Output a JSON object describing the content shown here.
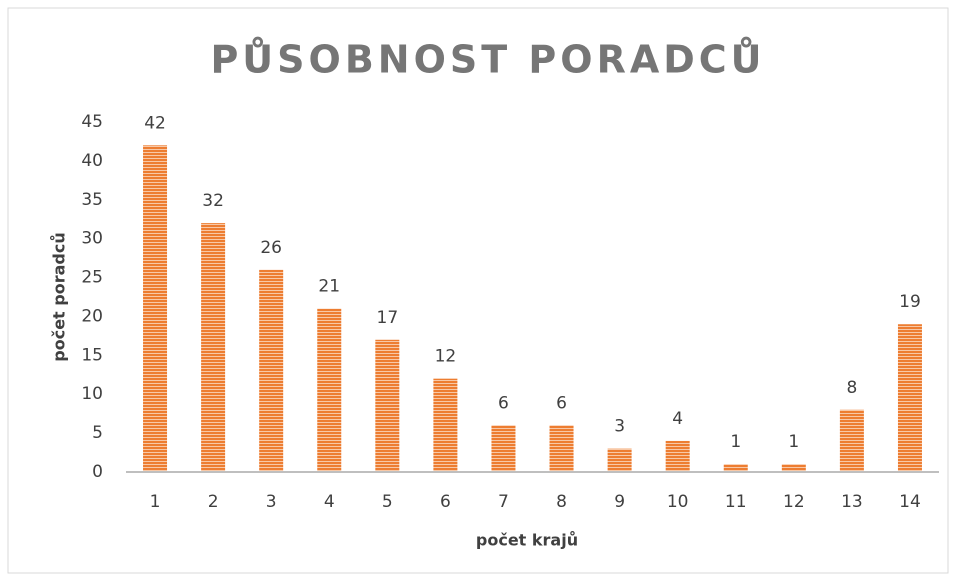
{
  "chart_data": {
    "type": "bar",
    "title": "PŮSOBNOST PORADCŮ",
    "x_label": "počet krajů",
    "y_label": "počet poradců",
    "categories": [
      "1",
      "2",
      "3",
      "4",
      "5",
      "6",
      "7",
      "8",
      "9",
      "10",
      "11",
      "12",
      "13",
      "14"
    ],
    "values": [
      42,
      32,
      26,
      21,
      17,
      12,
      6,
      6,
      3,
      4,
      1,
      1,
      8,
      19
    ],
    "color": "#ed7d31",
    "ylim": [
      0,
      45
    ],
    "yticks": [
      0,
      5,
      10,
      15,
      20,
      25,
      30,
      35,
      40,
      45
    ],
    "grid": false
  }
}
